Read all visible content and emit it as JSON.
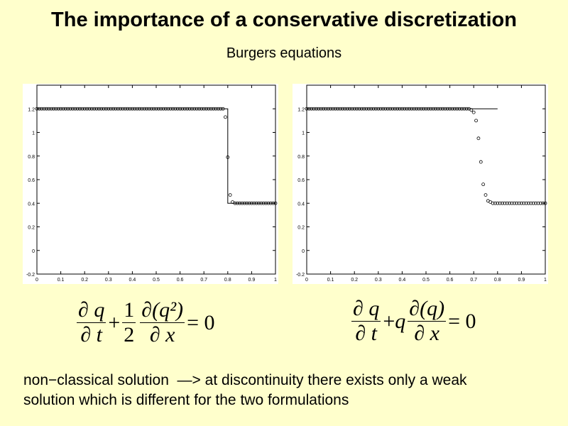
{
  "slide": {
    "title": "The importance of a conservative discretization",
    "subtitle": "Burgers equations",
    "note_line1": "non−classical solution  —> at discontinuity there exists only a weak",
    "note_line2": "solution which is different for the two formulations",
    "background": "#ffffcc"
  },
  "equations": {
    "left": {
      "num1": "∂ q",
      "den1": "∂ t",
      "plus": "+",
      "num2": "1",
      "den2": "2",
      "num3": "∂(q²)",
      "den3": "∂ x",
      "rhs": "= 0"
    },
    "right": {
      "num1": "∂ q",
      "den1": "∂ t",
      "plus": "+",
      "coef": "q",
      "num2": "∂(q)",
      "den2": "∂ x",
      "rhs": "= 0"
    }
  },
  "chart_data": [
    {
      "type": "line",
      "xlim": [
        0,
        1
      ],
      "ylim": [
        -0.2,
        1.4
      ],
      "xticks": [
        "0",
        "0.1",
        "0.2",
        "0.3",
        "0.4",
        "0.5",
        "0.6",
        "0.7",
        "0.8",
        "0.9",
        "1"
      ],
      "yticks": [
        "-0.2",
        "0",
        "0.2",
        "0.4",
        "0.6",
        "0.8",
        "1",
        "1.2"
      ],
      "grid": false,
      "exact": {
        "style": "solid line",
        "x": [
          0,
          0.8,
          0.8,
          1
        ],
        "y": [
          1.2,
          1.2,
          0.4,
          0.4
        ]
      },
      "numerical": {
        "style": "circles",
        "x": [
          0,
          0.01,
          0.02,
          0.03,
          0.04,
          0.05,
          0.06,
          0.07,
          0.08,
          0.09,
          0.1,
          0.11,
          0.12,
          0.13,
          0.14,
          0.15,
          0.16,
          0.17,
          0.18,
          0.19,
          0.2,
          0.21,
          0.22,
          0.23,
          0.24,
          0.25,
          0.26,
          0.27,
          0.28,
          0.29,
          0.3,
          0.31,
          0.32,
          0.33,
          0.34,
          0.35,
          0.36,
          0.37,
          0.38,
          0.39,
          0.4,
          0.41,
          0.42,
          0.43,
          0.44,
          0.45,
          0.46,
          0.47,
          0.48,
          0.49,
          0.5,
          0.51,
          0.52,
          0.53,
          0.54,
          0.55,
          0.56,
          0.57,
          0.58,
          0.59,
          0.6,
          0.61,
          0.62,
          0.63,
          0.64,
          0.65,
          0.66,
          0.67,
          0.68,
          0.69,
          0.7,
          0.71,
          0.72,
          0.73,
          0.74,
          0.75,
          0.76,
          0.77,
          0.78,
          0.79,
          0.8,
          0.81,
          0.82,
          0.83,
          0.84,
          0.85,
          0.86,
          0.87,
          0.88,
          0.89,
          0.9,
          0.91,
          0.92,
          0.93,
          0.94,
          0.95,
          0.96,
          0.97,
          0.98,
          0.99,
          1
        ],
        "y": [
          1.2,
          1.2,
          1.2,
          1.2,
          1.2,
          1.2,
          1.2,
          1.2,
          1.2,
          1.2,
          1.2,
          1.2,
          1.2,
          1.2,
          1.2,
          1.2,
          1.2,
          1.2,
          1.2,
          1.2,
          1.2,
          1.2,
          1.2,
          1.2,
          1.2,
          1.2,
          1.2,
          1.2,
          1.2,
          1.2,
          1.2,
          1.2,
          1.2,
          1.2,
          1.2,
          1.2,
          1.2,
          1.2,
          1.2,
          1.2,
          1.2,
          1.2,
          1.2,
          1.2,
          1.2,
          1.2,
          1.2,
          1.2,
          1.2,
          1.2,
          1.2,
          1.2,
          1.2,
          1.2,
          1.2,
          1.2,
          1.2,
          1.2,
          1.2,
          1.2,
          1.2,
          1.2,
          1.2,
          1.2,
          1.2,
          1.2,
          1.2,
          1.2,
          1.2,
          1.2,
          1.2,
          1.2,
          1.2,
          1.2,
          1.2,
          1.2,
          1.2,
          1.2,
          1.2,
          1.13,
          0.79,
          0.47,
          0.41,
          0.4,
          0.4,
          0.4,
          0.4,
          0.4,
          0.4,
          0.4,
          0.4,
          0.4,
          0.4,
          0.4,
          0.4,
          0.4,
          0.4,
          0.4,
          0.4,
          0.4,
          0.4
        ]
      }
    },
    {
      "type": "line",
      "xlim": [
        0,
        1
      ],
      "ylim": [
        -0.2,
        1.4
      ],
      "xticks": [
        "0",
        "0.1",
        "0.2",
        "0.3",
        "0.4",
        "0.5",
        "0.6",
        "0.7",
        "0.8",
        "0.9",
        "1"
      ],
      "yticks": [
        "-0.2",
        "0",
        "0.2",
        "0.4",
        "0.6",
        "0.8",
        "1",
        "1.2"
      ],
      "grid": false,
      "exact": {
        "style": "solid line",
        "x": [
          0,
          0.8
        ],
        "y": [
          1.2,
          1.2
        ]
      },
      "numerical": {
        "style": "circles",
        "x": [
          0,
          0.01,
          0.02,
          0.03,
          0.04,
          0.05,
          0.06,
          0.07,
          0.08,
          0.09,
          0.1,
          0.11,
          0.12,
          0.13,
          0.14,
          0.15,
          0.16,
          0.17,
          0.18,
          0.19,
          0.2,
          0.21,
          0.22,
          0.23,
          0.24,
          0.25,
          0.26,
          0.27,
          0.28,
          0.29,
          0.3,
          0.31,
          0.32,
          0.33,
          0.34,
          0.35,
          0.36,
          0.37,
          0.38,
          0.39,
          0.4,
          0.41,
          0.42,
          0.43,
          0.44,
          0.45,
          0.46,
          0.47,
          0.48,
          0.49,
          0.5,
          0.51,
          0.52,
          0.53,
          0.54,
          0.55,
          0.56,
          0.57,
          0.58,
          0.59,
          0.6,
          0.61,
          0.62,
          0.63,
          0.64,
          0.65,
          0.66,
          0.67,
          0.68,
          0.69,
          0.7,
          0.71,
          0.72,
          0.73,
          0.74,
          0.75,
          0.76,
          0.77,
          0.78,
          0.79,
          0.8,
          0.81,
          0.82,
          0.83,
          0.84,
          0.85,
          0.86,
          0.87,
          0.88,
          0.89,
          0.9,
          0.91,
          0.92,
          0.93,
          0.94,
          0.95,
          0.96,
          0.97,
          0.98,
          0.99,
          1
        ],
        "y": [
          1.2,
          1.2,
          1.2,
          1.2,
          1.2,
          1.2,
          1.2,
          1.2,
          1.2,
          1.2,
          1.2,
          1.2,
          1.2,
          1.2,
          1.2,
          1.2,
          1.2,
          1.2,
          1.2,
          1.2,
          1.2,
          1.2,
          1.2,
          1.2,
          1.2,
          1.2,
          1.2,
          1.2,
          1.2,
          1.2,
          1.2,
          1.2,
          1.2,
          1.2,
          1.2,
          1.2,
          1.2,
          1.2,
          1.2,
          1.2,
          1.2,
          1.2,
          1.2,
          1.2,
          1.2,
          1.2,
          1.2,
          1.2,
          1.2,
          1.2,
          1.2,
          1.2,
          1.2,
          1.2,
          1.2,
          1.2,
          1.2,
          1.2,
          1.2,
          1.2,
          1.2,
          1.2,
          1.2,
          1.2,
          1.2,
          1.2,
          1.2,
          1.2,
          1.2,
          1.19,
          1.17,
          1.1,
          0.95,
          0.75,
          0.56,
          0.47,
          0.42,
          0.41,
          0.4,
          0.4,
          0.4,
          0.4,
          0.4,
          0.4,
          0.4,
          0.4,
          0.4,
          0.4,
          0.4,
          0.4,
          0.4,
          0.4,
          0.4,
          0.4,
          0.4,
          0.4,
          0.4,
          0.4,
          0.4,
          0.4,
          0.4
        ]
      }
    }
  ]
}
